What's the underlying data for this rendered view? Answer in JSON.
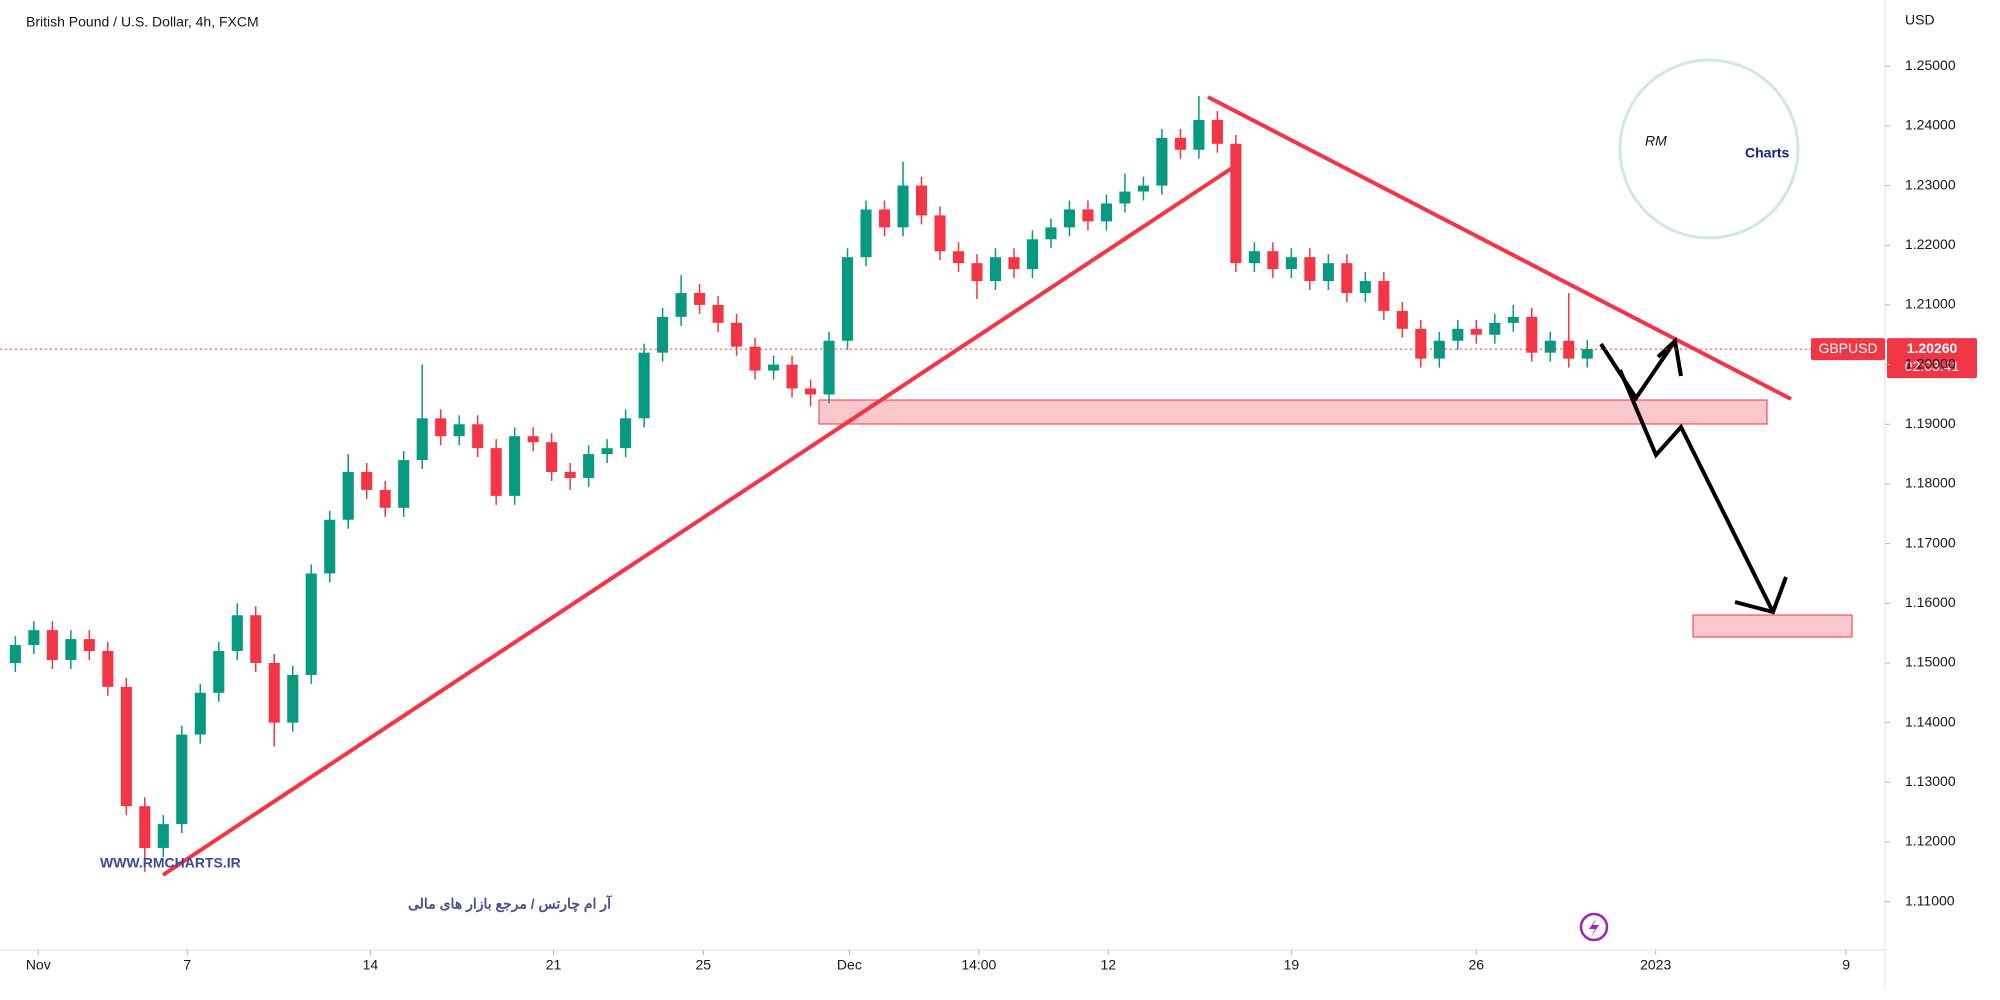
{
  "chart_data": {
    "type": "candlestick",
    "title": "British Pound / U.S. Dollar, 4h, FXCM",
    "currency": "USD",
    "symbol": "GBPUSD",
    "last_price": {
      "value": 1.2026,
      "label": "1.20260"
    },
    "countdown": "02:03:41",
    "watermark": "WWW.RMCHARTS.IR",
    "tagline": "آر ام چارتس / مرجع بازار های مالی",
    "logo_mark": "RM",
    "logo_text": "Charts",
    "up_color": "#089981",
    "down_color": "#f23645",
    "grid": false,
    "open": [
      1.15,
      1.153,
      1.1555,
      1.1505,
      1.154,
      1.152,
      1.146,
      1.126,
      1.119,
      1.123,
      1.138,
      1.145,
      1.152,
      1.158,
      1.15,
      1.14,
      1.148,
      1.165,
      1.174,
      1.182,
      1.179,
      1.176,
      1.184,
      1.191,
      1.188,
      1.19,
      1.186,
      1.178,
      1.188,
      1.187,
      1.182,
      1.181,
      1.185,
      1.186,
      1.191,
      1.202,
      1.208,
      1.212,
      1.21,
      1.207,
      1.203,
      1.199,
      1.2,
      1.196,
      1.195,
      1.204,
      1.218,
      1.226,
      1.223,
      1.23,
      1.225,
      1.219,
      1.217,
      1.214,
      1.218,
      1.216,
      1.221,
      1.223,
      1.226,
      1.224,
      1.227,
      1.229,
      1.23,
      1.238,
      1.236,
      1.241,
      1.237,
      1.217,
      1.219,
      1.216,
      1.218,
      1.214,
      1.217,
      1.212,
      1.214,
      1.209,
      1.206,
      1.201,
      1.204,
      1.206,
      1.205,
      1.207,
      1.208,
      1.202,
      1.204,
      1.201
    ],
    "high": [
      1.1545,
      1.157,
      1.157,
      1.1555,
      1.1555,
      1.1535,
      1.1475,
      1.1275,
      1.1245,
      1.1395,
      1.1465,
      1.1535,
      1.16,
      1.1595,
      1.1515,
      1.1495,
      1.1665,
      1.1755,
      1.185,
      1.1835,
      1.1805,
      1.1855,
      1.2,
      1.1925,
      1.1915,
      1.1915,
      1.1875,
      1.1895,
      1.1895,
      1.1885,
      1.1835,
      1.1865,
      1.1875,
      1.1925,
      1.2035,
      1.2095,
      1.215,
      1.2135,
      1.2115,
      1.2085,
      1.2045,
      1.2015,
      1.2015,
      1.1975,
      1.2055,
      1.2195,
      1.2275,
      1.2275,
      1.234,
      1.2315,
      1.2265,
      1.2205,
      1.2185,
      1.2195,
      1.2195,
      1.2225,
      1.2245,
      1.2275,
      1.2275,
      1.2285,
      1.232,
      1.2315,
      1.2395,
      1.2395,
      1.245,
      1.2425,
      1.2385,
      1.2205,
      1.2205,
      1.2195,
      1.2195,
      1.2185,
      1.2185,
      1.2155,
      1.2155,
      1.2105,
      1.2075,
      1.2055,
      1.2075,
      1.2075,
      1.2085,
      1.21,
      1.2095,
      1.2055,
      1.212,
      1.2041
    ],
    "low": [
      1.1485,
      1.1515,
      1.149,
      1.149,
      1.1505,
      1.1445,
      1.1245,
      1.115,
      1.1175,
      1.1215,
      1.1365,
      1.1435,
      1.1505,
      1.1485,
      1.136,
      1.1385,
      1.1465,
      1.1635,
      1.1725,
      1.1775,
      1.1745,
      1.1745,
      1.1825,
      1.1865,
      1.1865,
      1.1845,
      1.1765,
      1.1765,
      1.1855,
      1.1805,
      1.179,
      1.1795,
      1.1835,
      1.1845,
      1.1895,
      1.2005,
      1.2065,
      1.2085,
      1.2055,
      1.2015,
      1.1975,
      1.1975,
      1.1945,
      1.193,
      1.1935,
      1.2025,
      1.2165,
      1.2215,
      1.2215,
      1.2235,
      1.2175,
      1.2155,
      1.211,
      1.2125,
      1.2145,
      1.2145,
      1.2195,
      1.2215,
      1.2225,
      1.2225,
      1.2255,
      1.2275,
      1.2285,
      1.2345,
      1.2345,
      1.2355,
      1.2155,
      1.2155,
      1.2145,
      1.2145,
      1.2125,
      1.2125,
      1.2105,
      1.2105,
      1.2075,
      1.2045,
      1.1995,
      1.1995,
      1.2025,
      1.2035,
      1.2035,
      1.2055,
      1.2005,
      1.2005,
      1.1995,
      1.1995
    ],
    "close": [
      1.153,
      1.1555,
      1.1505,
      1.154,
      1.152,
      1.146,
      1.126,
      1.119,
      1.123,
      1.138,
      1.145,
      1.152,
      1.158,
      1.15,
      1.14,
      1.148,
      1.165,
      1.174,
      1.182,
      1.179,
      1.176,
      1.184,
      1.191,
      1.188,
      1.19,
      1.186,
      1.178,
      1.188,
      1.187,
      1.182,
      1.181,
      1.185,
      1.186,
      1.191,
      1.202,
      1.208,
      1.212,
      1.21,
      1.207,
      1.203,
      1.199,
      1.2,
      1.196,
      1.195,
      1.204,
      1.218,
      1.226,
      1.223,
      1.23,
      1.225,
      1.219,
      1.217,
      1.214,
      1.218,
      1.216,
      1.221,
      1.223,
      1.226,
      1.224,
      1.227,
      1.229,
      1.23,
      1.238,
      1.236,
      1.241,
      1.237,
      1.217,
      1.219,
      1.216,
      1.218,
      1.214,
      1.217,
      1.212,
      1.214,
      1.209,
      1.206,
      1.201,
      1.204,
      1.206,
      1.205,
      1.207,
      1.208,
      1.202,
      1.204,
      1.201,
      1.2026
    ],
    "xlim": [
      -0.83,
      101.1
    ],
    "xticks": [
      {
        "value": 1.24,
        "label": "Nov"
      },
      {
        "value": 9.3,
        "label": "7"
      },
      {
        "value": 19.2,
        "label": "14"
      },
      {
        "value": 29.1,
        "label": "21"
      },
      {
        "value": 37.2,
        "label": "25"
      },
      {
        "value": 45.1,
        "label": "Dec"
      },
      {
        "value": 52.1,
        "label": "14:00"
      },
      {
        "value": 59.1,
        "label": "12"
      },
      {
        "value": 69.0,
        "label": "19"
      },
      {
        "value": 79.0,
        "label": "26"
      },
      {
        "value": 88.7,
        "label": "2023"
      },
      {
        "value": 99.0,
        "label": "9"
      }
    ],
    "ylim": [
      1.1019,
      1.2611
    ],
    "yticks": [
      {
        "value": 1.11,
        "label": "1.11000"
      },
      {
        "value": 1.12,
        "label": "1.12000"
      },
      {
        "value": 1.13,
        "label": "1.13000"
      },
      {
        "value": 1.14,
        "label": "1.14000"
      },
      {
        "value": 1.15,
        "label": "1.15000"
      },
      {
        "value": 1.16,
        "label": "1.16000"
      },
      {
        "value": 1.17,
        "label": "1.17000"
      },
      {
        "value": 1.18,
        "label": "1.18000"
      },
      {
        "value": 1.19,
        "label": "1.19000"
      },
      {
        "value": 1.2,
        "label": "1.20000"
      },
      {
        "value": 1.21,
        "label": "1.21000"
      },
      {
        "value": 1.22,
        "label": "1.22000"
      },
      {
        "value": 1.23,
        "label": "1.23000"
      },
      {
        "value": 1.24,
        "label": "1.24000"
      },
      {
        "value": 1.25,
        "label": "1.25000"
      }
    ]
  }
}
